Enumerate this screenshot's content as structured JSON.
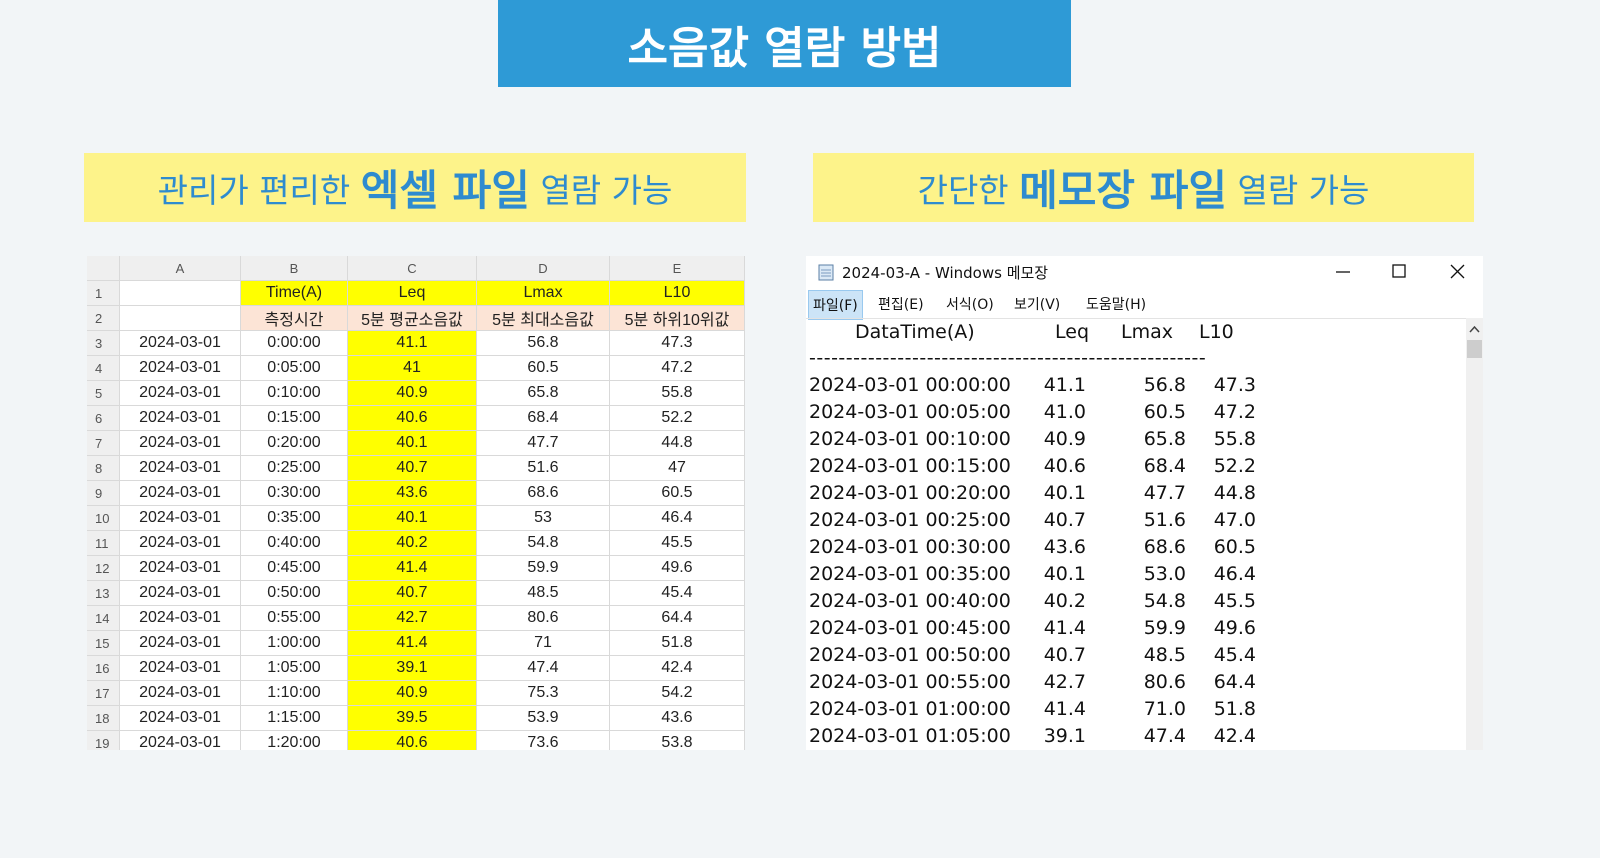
{
  "header": {
    "title": "소음값 열람 방법"
  },
  "left_subtitle": {
    "before": "관리가 편리한 ",
    "emphasis": "엑셀 파일",
    "after": " 열람 가능"
  },
  "right_subtitle": {
    "before": "간단한 ",
    "emphasis": "메모장 파일",
    "after": " 열람 가능"
  },
  "excel": {
    "column_headers": [
      "A",
      "B",
      "C",
      "D",
      "E"
    ],
    "row_numbers": [
      1,
      2,
      3,
      4,
      5,
      6,
      7,
      8,
      9,
      10,
      11,
      12,
      13,
      14,
      15,
      16,
      17,
      18,
      19
    ],
    "title_row": [
      "Time(A)",
      "Leq",
      "Lmax",
      "L10"
    ],
    "description_row": [
      "측정시간",
      "5분 평균소음값",
      "5분 최대소음값",
      "5분 하위10위값"
    ],
    "data_rows": [
      [
        "2024-03-01",
        "0:00:00",
        "41.1",
        "56.8",
        "47.3"
      ],
      [
        "2024-03-01",
        "0:05:00",
        "41",
        "60.5",
        "47.2"
      ],
      [
        "2024-03-01",
        "0:10:00",
        "40.9",
        "65.8",
        "55.8"
      ],
      [
        "2024-03-01",
        "0:15:00",
        "40.6",
        "68.4",
        "52.2"
      ],
      [
        "2024-03-01",
        "0:20:00",
        "40.1",
        "47.7",
        "44.8"
      ],
      [
        "2024-03-01",
        "0:25:00",
        "40.7",
        "51.6",
        "47"
      ],
      [
        "2024-03-01",
        "0:30:00",
        "43.6",
        "68.6",
        "60.5"
      ],
      [
        "2024-03-01",
        "0:35:00",
        "40.1",
        "53",
        "46.4"
      ],
      [
        "2024-03-01",
        "0:40:00",
        "40.2",
        "54.8",
        "45.5"
      ],
      [
        "2024-03-01",
        "0:45:00",
        "41.4",
        "59.9",
        "49.6"
      ],
      [
        "2024-03-01",
        "0:50:00",
        "40.7",
        "48.5",
        "45.4"
      ],
      [
        "2024-03-01",
        "0:55:00",
        "42.7",
        "80.6",
        "64.4"
      ],
      [
        "2024-03-01",
        "1:00:00",
        "41.4",
        "71",
        "51.8"
      ],
      [
        "2024-03-01",
        "1:05:00",
        "39.1",
        "47.4",
        "42.4"
      ],
      [
        "2024-03-01",
        "1:10:00",
        "40.9",
        "75.3",
        "54.2"
      ],
      [
        "2024-03-01",
        "1:15:00",
        "39.5",
        "53.9",
        "43.6"
      ],
      [
        "2024-03-01",
        "1:20:00",
        "40.6",
        "73.6",
        "53.8"
      ]
    ]
  },
  "notepad": {
    "window_title": "2024-03-A - Windows 메모장",
    "menu": [
      "파일(F)",
      "편집(E)",
      "서식(O)",
      "보기(V)",
      "도움말(H)"
    ],
    "columns": [
      "DataTime(A)",
      "Leq",
      "Lmax",
      "L10"
    ],
    "separator": "------------------------------------------------------",
    "rows": [
      [
        "2024-03-01 00:00:00",
        "41.1",
        "56.8",
        "47.3"
      ],
      [
        "2024-03-01 00:05:00",
        "41.0",
        "60.5",
        "47.2"
      ],
      [
        "2024-03-01 00:10:00",
        "40.9",
        "65.8",
        "55.8"
      ],
      [
        "2024-03-01 00:15:00",
        "40.6",
        "68.4",
        "52.2"
      ],
      [
        "2024-03-01 00:20:00",
        "40.1",
        "47.7",
        "44.8"
      ],
      [
        "2024-03-01 00:25:00",
        "40.7",
        "51.6",
        "47.0"
      ],
      [
        "2024-03-01 00:30:00",
        "43.6",
        "68.6",
        "60.5"
      ],
      [
        "2024-03-01 00:35:00",
        "40.1",
        "53.0",
        "46.4"
      ],
      [
        "2024-03-01 00:40:00",
        "40.2",
        "54.8",
        "45.5"
      ],
      [
        "2024-03-01 00:45:00",
        "41.4",
        "59.9",
        "49.6"
      ],
      [
        "2024-03-01 00:50:00",
        "40.7",
        "48.5",
        "45.4"
      ],
      [
        "2024-03-01 00:55:00",
        "42.7",
        "80.6",
        "64.4"
      ],
      [
        "2024-03-01 01:00:00",
        "41.4",
        "71.0",
        "51.8"
      ],
      [
        "2024-03-01 01:05:00",
        "39.1",
        "47.4",
        "42.4"
      ]
    ]
  }
}
